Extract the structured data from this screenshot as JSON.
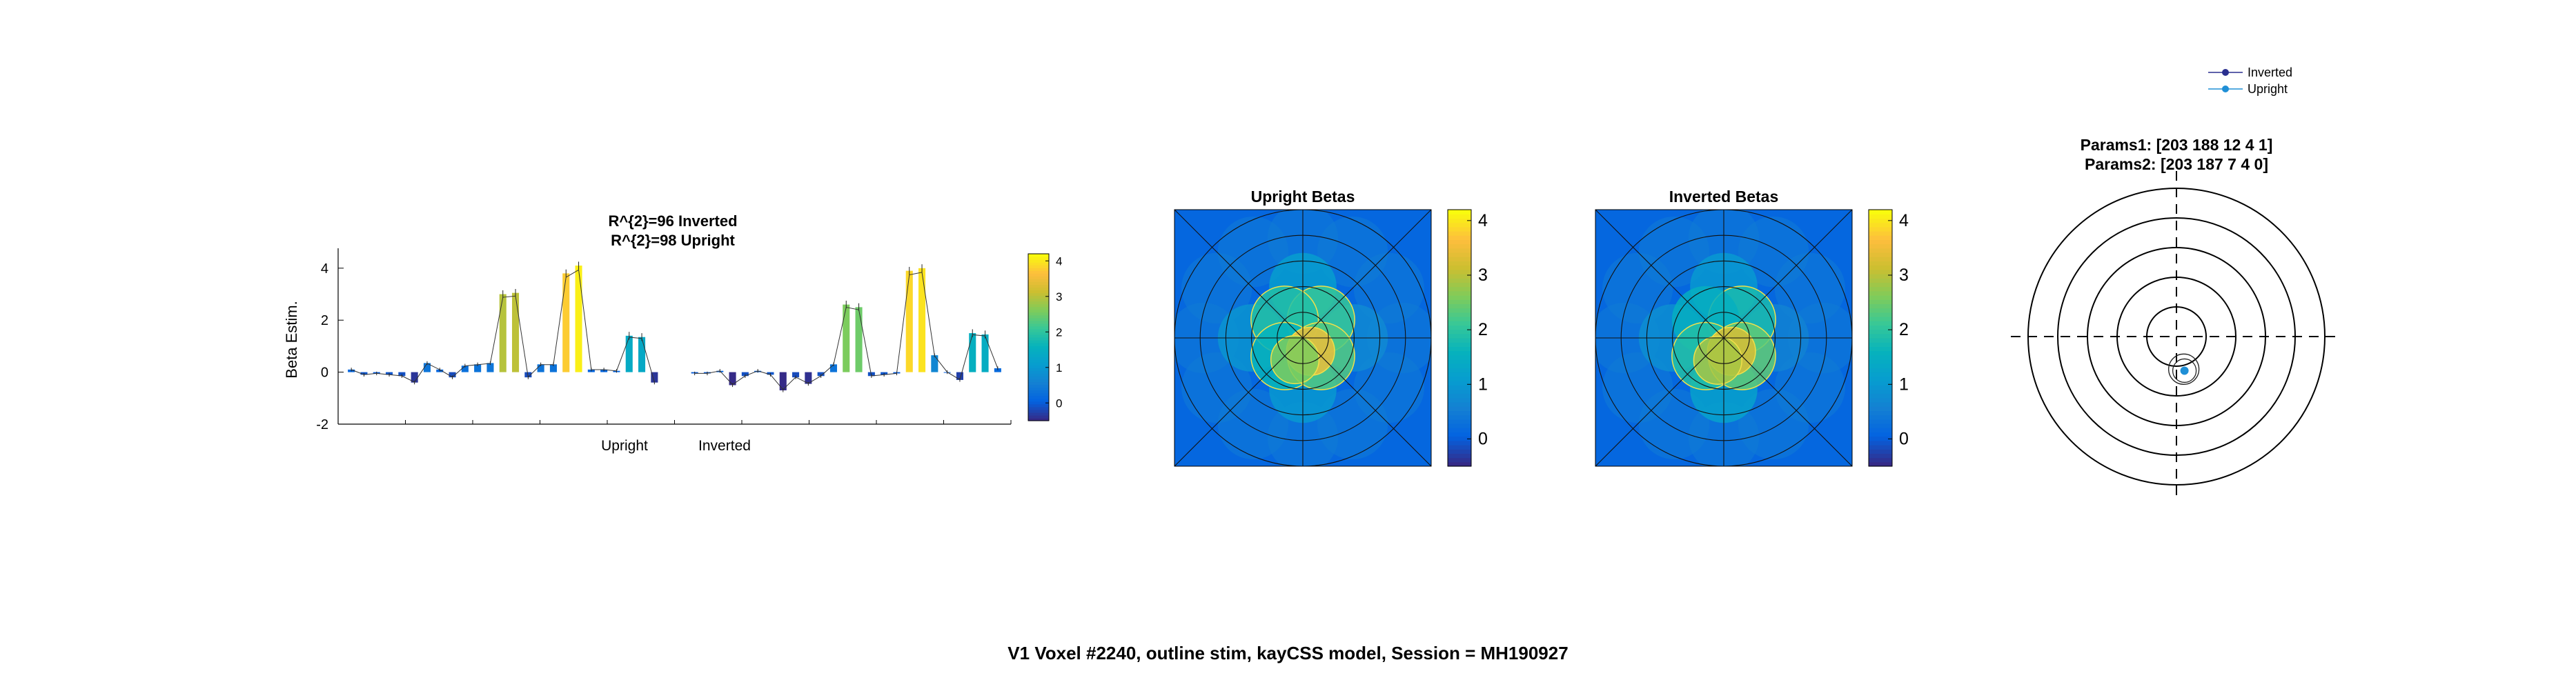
{
  "title": "V1 Voxel #2240, outline stim, kayCSS model, Session = MH190927",
  "chart_data": [
    {
      "type": "bar",
      "title_lines": [
        "R^{2}=96 Inverted",
        "R^{2}=98 Upright"
      ],
      "ylabel": "Beta Estim.",
      "ylim": [
        -2,
        4.5
      ],
      "yticks": [
        "-2",
        "0",
        "2",
        "4"
      ],
      "group_labels": [
        "Upright",
        "Inverted"
      ],
      "colorbar_ticks": [
        "0",
        "1",
        "2",
        "3",
        "4"
      ],
      "colormap": "parula",
      "series": [
        {
          "name": "Upright",
          "values": [
            0.1,
            -0.1,
            -0.05,
            -0.1,
            -0.15,
            -0.4,
            0.35,
            0.1,
            -0.2,
            0.25,
            0.3,
            0.35,
            3.0,
            3.05,
            -0.2,
            0.3,
            0.3,
            3.8,
            4.1,
            0.1,
            0.1,
            0.05,
            1.4,
            1.35,
            -0.4
          ]
        },
        {
          "name": "Inverted",
          "values": [
            -0.05,
            -0.05,
            0.05,
            -0.5,
            -0.15,
            0.05,
            -0.1,
            -0.7,
            -0.2,
            -0.45,
            -0.15,
            0.3,
            2.6,
            2.5,
            -0.15,
            -0.1,
            -0.05,
            3.9,
            4.0,
            0.65,
            0.0,
            -0.3,
            1.5,
            1.45,
            0.15
          ]
        }
      ]
    },
    {
      "type": "heatmap",
      "title": "Upright Betas",
      "colorbar_ticks": [
        "0",
        "1",
        "2",
        "3",
        "4"
      ],
      "colormap": "parula",
      "clim": [
        -0.5,
        4.2
      ],
      "rings": 5,
      "spokes": 8,
      "background_value": 0.1,
      "blobs": [
        {
          "angle_deg": 0,
          "ecc": 2,
          "value": 0.7
        },
        {
          "angle_deg": 90,
          "ecc": 2,
          "value": 1.1
        },
        {
          "angle_deg": 180,
          "ecc": 2,
          "value": 0.9
        },
        {
          "angle_deg": 270,
          "ecc": 2,
          "value": 1.0
        },
        {
          "angle_deg": 45,
          "ecc": 1,
          "value": 2.1
        },
        {
          "angle_deg": 135,
          "ecc": 1,
          "value": 1.9
        },
        {
          "angle_deg": 225,
          "ecc": 1,
          "value": 1.6
        },
        {
          "angle_deg": 315,
          "ecc": 1,
          "value": 2.3
        },
        {
          "angle_deg": 300,
          "ecc": 0.6,
          "value": 3.5
        },
        {
          "angle_deg": 250,
          "ecc": 0.9,
          "value": 2.6
        }
      ]
    },
    {
      "type": "heatmap",
      "title": "Inverted Betas",
      "colorbar_ticks": [
        "0",
        "1",
        "2",
        "3",
        "4"
      ],
      "colormap": "parula",
      "clim": [
        -0.5,
        4.2
      ],
      "rings": 5,
      "spokes": 8,
      "background_value": 0.1,
      "blobs": [
        {
          "angle_deg": 0,
          "ecc": 2,
          "value": 0.6
        },
        {
          "angle_deg": 90,
          "ecc": 2,
          "value": 1.0
        },
        {
          "angle_deg": 180,
          "ecc": 2,
          "value": 0.8
        },
        {
          "angle_deg": 270,
          "ecc": 2,
          "value": 1.2
        },
        {
          "angle_deg": 45,
          "ecc": 1,
          "value": 1.8
        },
        {
          "angle_deg": 135,
          "ecc": 1,
          "value": 1.5
        },
        {
          "angle_deg": 225,
          "ecc": 1,
          "value": 1.9
        },
        {
          "angle_deg": 315,
          "ecc": 1,
          "value": 2.4
        },
        {
          "angle_deg": 300,
          "ecc": 0.6,
          "value": 3.3
        },
        {
          "angle_deg": 255,
          "ecc": 0.9,
          "value": 2.9
        }
      ]
    },
    {
      "type": "scatter",
      "params_lines": [
        "Params1: [203   188   12    4    1]",
        "Params2: [203   187    7    4    0]"
      ],
      "legend": [
        {
          "label": "Inverted",
          "color": "#2a2f8f"
        },
        {
          "label": "Upright",
          "color": "#1f8fd6"
        }
      ],
      "legend_position": "top-right",
      "rings": 5,
      "prf_centers": [
        {
          "name": "Inverted",
          "x": 0.55,
          "y": -1.1,
          "color": "#2a2f8f"
        },
        {
          "name": "Upright",
          "x": 0.6,
          "y": -1.15,
          "color": "#1f8fd6"
        }
      ]
    }
  ]
}
